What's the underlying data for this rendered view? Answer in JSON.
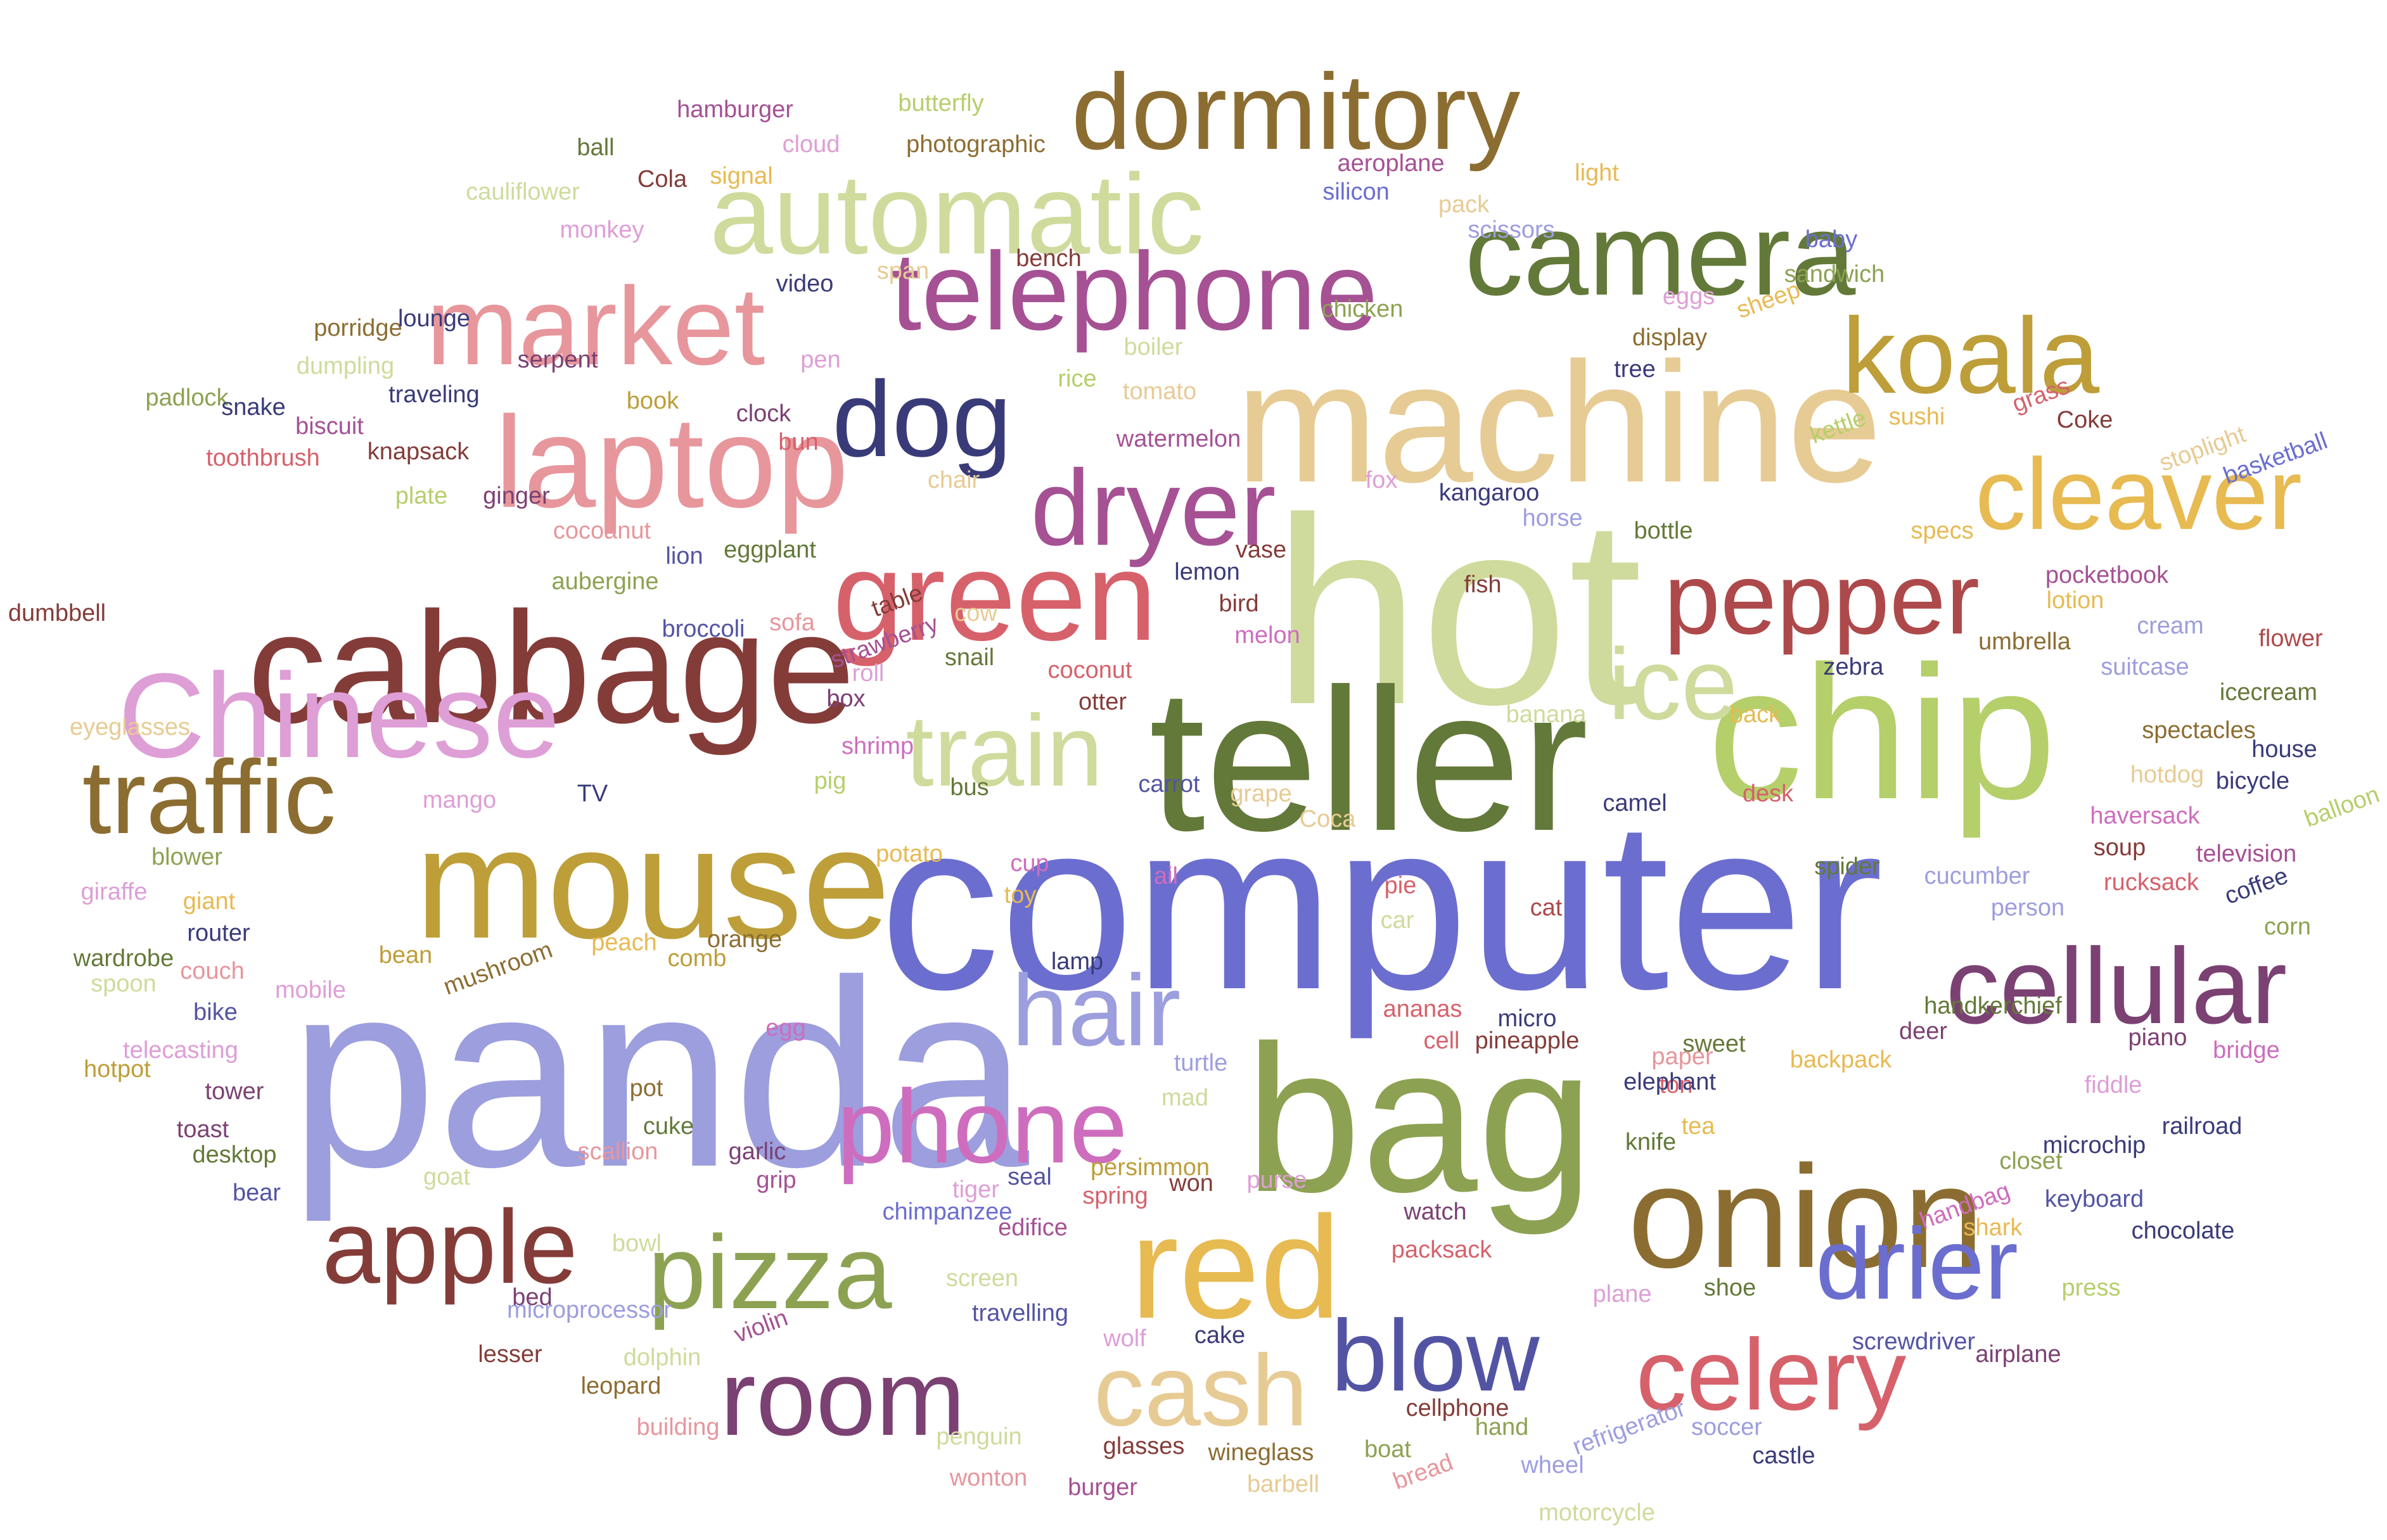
{
  "words": [
    {
      "text": "computer",
      "color": "#6b6ecf"
    },
    {
      "text": "panda",
      "color": "#9c9ede"
    },
    {
      "text": "hot",
      "color": "#cedb9c"
    },
    {
      "text": "teller",
      "color": "#637939"
    },
    {
      "text": "machine",
      "color": "#e7cb94"
    },
    {
      "text": "bag",
      "color": "#8ca252"
    },
    {
      "text": "chip",
      "color": "#b5cf6b"
    },
    {
      "text": "cabbage",
      "color": "#843c39"
    },
    {
      "text": "mouse",
      "color": "#bd9e39"
    },
    {
      "text": "onion",
      "color": "#8c6d31"
    },
    {
      "text": "red",
      "color": "#e7ba52"
    },
    {
      "text": "Chinese",
      "color": "#de9ed6"
    },
    {
      "text": "laptop",
      "color": "#e7969c"
    },
    {
      "text": "green",
      "color": "#d6616b"
    },
    {
      "text": "cellular",
      "color": "#7b4173"
    },
    {
      "text": "camera",
      "color": "#637939"
    },
    {
      "text": "automatic",
      "color": "#cedb9c"
    },
    {
      "text": "telephone",
      "color": "#a55194"
    },
    {
      "text": "dormitory",
      "color": "#8c6d31"
    },
    {
      "text": "market",
      "color": "#e7969c"
    },
    {
      "text": "koala",
      "color": "#bd9e39"
    },
    {
      "text": "cleaver",
      "color": "#e7ba52"
    },
    {
      "text": "pepper",
      "color": "#ad494a"
    },
    {
      "text": "ice",
      "color": "#cedb9c"
    },
    {
      "text": "dryer",
      "color": "#a55194"
    },
    {
      "text": "dog",
      "color": "#393b79"
    },
    {
      "text": "train",
      "color": "#cedb9c"
    },
    {
      "text": "traffic",
      "color": "#8c6d31"
    },
    {
      "text": "hair",
      "color": "#9c9ede"
    },
    {
      "text": "phone",
      "color": "#ce6dbd"
    },
    {
      "text": "apple",
      "color": "#843c39"
    },
    {
      "text": "pizza",
      "color": "#8ca252"
    },
    {
      "text": "room",
      "color": "#7b4173"
    },
    {
      "text": "cash",
      "color": "#e7cb94"
    },
    {
      "text": "blow",
      "color": "#5254a3"
    },
    {
      "text": "drier",
      "color": "#6b6ecf"
    },
    {
      "text": "celery",
      "color": "#d6616b"
    },
    {
      "text": "dumbbell",
      "color": "#843c39"
    },
    {
      "text": "eyeglasses",
      "color": "#e7cb94"
    },
    {
      "text": "giraffe",
      "color": "#de9ed6"
    },
    {
      "text": "wardrobe",
      "color": "#637939"
    },
    {
      "text": "spoon",
      "color": "#cedb9c"
    },
    {
      "text": "telecasting",
      "color": "#de9ed6"
    },
    {
      "text": "hotpot",
      "color": "#bd9e39"
    },
    {
      "text": "toast",
      "color": "#7b4173"
    },
    {
      "text": "desktop",
      "color": "#637939"
    },
    {
      "text": "bear",
      "color": "#5254a3"
    },
    {
      "text": "padlock",
      "color": "#8ca252"
    },
    {
      "text": "snake",
      "color": "#393b79"
    },
    {
      "text": "toothbrush",
      "color": "#d6616b"
    },
    {
      "text": "biscuit",
      "color": "#a55194"
    },
    {
      "text": "knapsack",
      "color": "#843c39"
    },
    {
      "text": "traveling",
      "color": "#393b79"
    },
    {
      "text": "porridge",
      "color": "#8c6d31"
    },
    {
      "text": "dumpling",
      "color": "#cedb9c"
    },
    {
      "text": "lounge",
      "color": "#393b79"
    },
    {
      "text": "cauliflower",
      "color": "#cedb9c"
    },
    {
      "text": "monkey",
      "color": "#de9ed6"
    },
    {
      "text": "ball",
      "color": "#637939"
    },
    {
      "text": "Cola",
      "color": "#843c39"
    },
    {
      "text": "hamburger",
      "color": "#a55194"
    },
    {
      "text": "signal",
      "color": "#e7ba52"
    },
    {
      "text": "cloud",
      "color": "#de9ed6"
    },
    {
      "text": "butterfly",
      "color": "#b5cf6b"
    },
    {
      "text": "photographic",
      "color": "#8c6d31"
    },
    {
      "text": "video",
      "color": "#393b79"
    },
    {
      "text": "span",
      "color": "#e7cb94"
    },
    {
      "text": "bench",
      "color": "#843c39"
    },
    {
      "text": "pen",
      "color": "#de9ed6"
    },
    {
      "text": "serpent",
      "color": "#7b4173"
    },
    {
      "text": "book",
      "color": "#bd9e39"
    },
    {
      "text": "clock",
      "color": "#7b4173"
    },
    {
      "text": "bun",
      "color": "#d6616b"
    },
    {
      "text": "rice",
      "color": "#b5cf6b"
    },
    {
      "text": "tomato",
      "color": "#e7cb94"
    },
    {
      "text": "boiler",
      "color": "#cedb9c"
    },
    {
      "text": "chicken",
      "color": "#8ca252"
    },
    {
      "text": "watermelon",
      "color": "#a55194"
    },
    {
      "text": "plate",
      "color": "#b5cf6b"
    },
    {
      "text": "ginger",
      "color": "#7b4173"
    },
    {
      "text": "cocoanut",
      "color": "#e7969c"
    },
    {
      "text": "aubergine",
      "color": "#8ca252"
    },
    {
      "text": "lion",
      "color": "#5254a3"
    },
    {
      "text": "eggplant",
      "color": "#637939"
    },
    {
      "text": "broccoli",
      "color": "#5254a3"
    },
    {
      "text": "sofa",
      "color": "#e7969c"
    },
    {
      "text": "strawberry",
      "color": "#a55194"
    },
    {
      "text": "table",
      "color": "#843c39"
    },
    {
      "text": "chair",
      "color": "#e7cb94"
    },
    {
      "text": "cow",
      "color": "#e7cb94"
    },
    {
      "text": "snail",
      "color": "#637939"
    },
    {
      "text": "roll",
      "color": "#de9ed6"
    },
    {
      "text": "box",
      "color": "#7b4173"
    },
    {
      "text": "shrimp",
      "color": "#ce6dbd"
    },
    {
      "text": "pig",
      "color": "#b5cf6b"
    },
    {
      "text": "bus",
      "color": "#637939"
    },
    {
      "text": "mango",
      "color": "#de9ed6"
    },
    {
      "text": "TV",
      "color": "#393b79"
    },
    {
      "text": "blower",
      "color": "#8ca252"
    },
    {
      "text": "giant",
      "color": "#e7ba52"
    },
    {
      "text": "router",
      "color": "#393b79"
    },
    {
      "text": "couch",
      "color": "#e7969c"
    },
    {
      "text": "bike",
      "color": "#5254a3"
    },
    {
      "text": "tower",
      "color": "#7b4173"
    },
    {
      "text": "mobile",
      "color": "#de9ed6"
    },
    {
      "text": "bean",
      "color": "#bd9e39"
    },
    {
      "text": "mushroom",
      "color": "#8c6d31"
    },
    {
      "text": "peach",
      "color": "#e7ba52"
    },
    {
      "text": "comb",
      "color": "#bd9e39"
    },
    {
      "text": "orange",
      "color": "#8c6d31"
    },
    {
      "text": "potato",
      "color": "#e7ba52"
    },
    {
      "text": "cup",
      "color": "#ce6dbd"
    },
    {
      "text": "toy",
      "color": "#e7ba52"
    },
    {
      "text": "lamp",
      "color": "#393b79"
    },
    {
      "text": "egg",
      "color": "#ce6dbd"
    },
    {
      "text": "pot",
      "color": "#8c6d31"
    },
    {
      "text": "cuke",
      "color": "#637939"
    },
    {
      "text": "scallion",
      "color": "#e7969c"
    },
    {
      "text": "goat",
      "color": "#cedb9c"
    },
    {
      "text": "garlic",
      "color": "#7b4173"
    },
    {
      "text": "grip",
      "color": "#a55194"
    },
    {
      "text": "bowl",
      "color": "#cedb9c"
    },
    {
      "text": "bed",
      "color": "#7b4173"
    },
    {
      "text": "microprocessor",
      "color": "#9c9ede"
    },
    {
      "text": "lesser",
      "color": "#843c39"
    },
    {
      "text": "leopard",
      "color": "#8c6d31"
    },
    {
      "text": "dolphin",
      "color": "#cedb9c"
    },
    {
      "text": "building",
      "color": "#e7969c"
    },
    {
      "text": "violin",
      "color": "#a55194"
    },
    {
      "text": "penguin",
      "color": "#cedb9c"
    },
    {
      "text": "wonton",
      "color": "#e7969c"
    },
    {
      "text": "screen",
      "color": "#cedb9c"
    },
    {
      "text": "chimpanzee",
      "color": "#6b6ecf"
    },
    {
      "text": "tiger",
      "color": "#de9ed6"
    },
    {
      "text": "seal",
      "color": "#5254a3"
    },
    {
      "text": "edifice",
      "color": "#a55194"
    },
    {
      "text": "travelling",
      "color": "#5254a3"
    },
    {
      "text": "wolf",
      "color": "#de9ed6"
    },
    {
      "text": "cake",
      "color": "#393b79"
    },
    {
      "text": "glasses",
      "color": "#843c39"
    },
    {
      "text": "burger",
      "color": "#a55194"
    },
    {
      "text": "wineglass",
      "color": "#8c6d31"
    },
    {
      "text": "barbell",
      "color": "#e7cb94"
    },
    {
      "text": "boat",
      "color": "#8ca252"
    },
    {
      "text": "bread",
      "color": "#e7969c"
    },
    {
      "text": "cellphone",
      "color": "#843c39"
    },
    {
      "text": "hand",
      "color": "#8ca252"
    },
    {
      "text": "wheel",
      "color": "#9c9ede"
    },
    {
      "text": "motorcycle",
      "color": "#cedb9c"
    },
    {
      "text": "refrigerator",
      "color": "#9c9ede"
    },
    {
      "text": "soccer",
      "color": "#9c9ede"
    },
    {
      "text": "castle",
      "color": "#393b79"
    },
    {
      "text": "screwdriver",
      "color": "#5254a3"
    },
    {
      "text": "airplane",
      "color": "#7b4173"
    },
    {
      "text": "press",
      "color": "#b5cf6b"
    },
    {
      "text": "chocolate",
      "color": "#393b79"
    },
    {
      "text": "shoe",
      "color": "#637939"
    },
    {
      "text": "plane",
      "color": "#de9ed6"
    },
    {
      "text": "shark",
      "color": "#e7ba52"
    },
    {
      "text": "keyboard",
      "color": "#5254a3"
    },
    {
      "text": "handbag",
      "color": "#ce6dbd"
    },
    {
      "text": "closet",
      "color": "#8ca252"
    },
    {
      "text": "railroad",
      "color": "#393b79"
    },
    {
      "text": "microchip",
      "color": "#393b79"
    },
    {
      "text": "fiddle",
      "color": "#de9ed6"
    },
    {
      "text": "bridge",
      "color": "#ce6dbd"
    },
    {
      "text": "piano",
      "color": "#7b4173"
    },
    {
      "text": "handkerchief",
      "color": "#637939"
    },
    {
      "text": "deer",
      "color": "#7b4173"
    },
    {
      "text": "backpack",
      "color": "#e7ba52"
    },
    {
      "text": "sweet",
      "color": "#637939"
    },
    {
      "text": "paper",
      "color": "#e7969c"
    },
    {
      "text": "ton",
      "color": "#d6616b"
    },
    {
      "text": "elephant",
      "color": "#393b79"
    },
    {
      "text": "tea",
      "color": "#e7ba52"
    },
    {
      "text": "knife",
      "color": "#637939"
    },
    {
      "text": "purse",
      "color": "#de9ed6"
    },
    {
      "text": "watch",
      "color": "#7b4173"
    },
    {
      "text": "packsack",
      "color": "#d6616b"
    },
    {
      "text": "persimmon",
      "color": "#bd9e39"
    },
    {
      "text": "won",
      "color": "#843c39"
    },
    {
      "text": "spring",
      "color": "#d6616b"
    },
    {
      "text": "mad",
      "color": "#cedb9c"
    },
    {
      "text": "turtle",
      "color": "#9c9ede"
    },
    {
      "text": "pineapple",
      "color": "#843c39"
    },
    {
      "text": "cell",
      "color": "#d6616b"
    },
    {
      "text": "micro",
      "color": "#393b79"
    },
    {
      "text": "ananas",
      "color": "#d6616b"
    },
    {
      "text": "car",
      "color": "#cedb9c"
    },
    {
      "text": "pie",
      "color": "#d6616b"
    },
    {
      "text": "cat",
      "color": "#ad494a"
    },
    {
      "text": "ail",
      "color": "#ce6dbd"
    },
    {
      "text": "Coca",
      "color": "#e7cb94"
    },
    {
      "text": "grape",
      "color": "#e7cb94"
    },
    {
      "text": "carrot",
      "color": "#5254a3"
    },
    {
      "text": "otter",
      "color": "#843c39"
    },
    {
      "text": "coconut",
      "color": "#d6616b"
    },
    {
      "text": "melon",
      "color": "#ce6dbd"
    },
    {
      "text": "bird",
      "color": "#843c39"
    },
    {
      "text": "vase",
      "color": "#843c39"
    },
    {
      "text": "lemon",
      "color": "#393b79"
    },
    {
      "text": "fish",
      "color": "#843c39"
    },
    {
      "text": "fox",
      "color": "#de9ed6"
    },
    {
      "text": "kangaroo",
      "color": "#393b79"
    },
    {
      "text": "horse",
      "color": "#9c9ede"
    },
    {
      "text": "bottle",
      "color": "#637939"
    },
    {
      "text": "banana",
      "color": "#cedb9c"
    },
    {
      "text": "camel",
      "color": "#393b79"
    },
    {
      "text": "desk",
      "color": "#d6616b"
    },
    {
      "text": "back",
      "color": "#e7ba52"
    },
    {
      "text": "zebra",
      "color": "#393b79"
    },
    {
      "text": "spider",
      "color": "#637939"
    },
    {
      "text": "cucumber",
      "color": "#9c9ede"
    },
    {
      "text": "person",
      "color": "#9c9ede"
    },
    {
      "text": "soup",
      "color": "#843c39"
    },
    {
      "text": "haversack",
      "color": "#ce6dbd"
    },
    {
      "text": "rucksack",
      "color": "#d6616b"
    },
    {
      "text": "hotdog",
      "color": "#e7cb94"
    },
    {
      "text": "spectacles",
      "color": "#8c6d31"
    },
    {
      "text": "umbrella",
      "color": "#8c6d31"
    },
    {
      "text": "suitcase",
      "color": "#9c9ede"
    },
    {
      "text": "cream",
      "color": "#9c9ede"
    },
    {
      "text": "lotion",
      "color": "#e7ba52"
    },
    {
      "text": "pocketbook",
      "color": "#a55194"
    },
    {
      "text": "specs",
      "color": "#e7ba52"
    },
    {
      "text": "flower",
      "color": "#ad494a"
    },
    {
      "text": "icecream",
      "color": "#637939"
    },
    {
      "text": "house",
      "color": "#393b79"
    },
    {
      "text": "bicycle",
      "color": "#393b79"
    },
    {
      "text": "balloon",
      "color": "#b5cf6b"
    },
    {
      "text": "television",
      "color": "#a55194"
    },
    {
      "text": "coffee",
      "color": "#393b79"
    },
    {
      "text": "corn",
      "color": "#8ca252"
    },
    {
      "text": "basketball",
      "color": "#6b6ecf"
    },
    {
      "text": "stoplight",
      "color": "#e7cb94"
    },
    {
      "text": "Coke",
      "color": "#843c39"
    },
    {
      "text": "grass",
      "color": "#d6616b"
    },
    {
      "text": "sushi",
      "color": "#e7ba52"
    },
    {
      "text": "kettle",
      "color": "#b5cf6b"
    },
    {
      "text": "tree",
      "color": "#393b79"
    },
    {
      "text": "display",
      "color": "#8c6d31"
    },
    {
      "text": "eggs",
      "color": "#de9ed6"
    },
    {
      "text": "sheep",
      "color": "#e7ba52"
    },
    {
      "text": "sandwich",
      "color": "#8ca252"
    },
    {
      "text": "baby",
      "color": "#6b6ecf"
    },
    {
      "text": "scissors",
      "color": "#9c9ede"
    },
    {
      "text": "pack",
      "color": "#e7cb94"
    },
    {
      "text": "light",
      "color": "#e7ba52"
    },
    {
      "text": "silicon",
      "color": "#6b6ecf"
    },
    {
      "text": "aeroplane",
      "color": "#a55194"
    }
  ]
}
